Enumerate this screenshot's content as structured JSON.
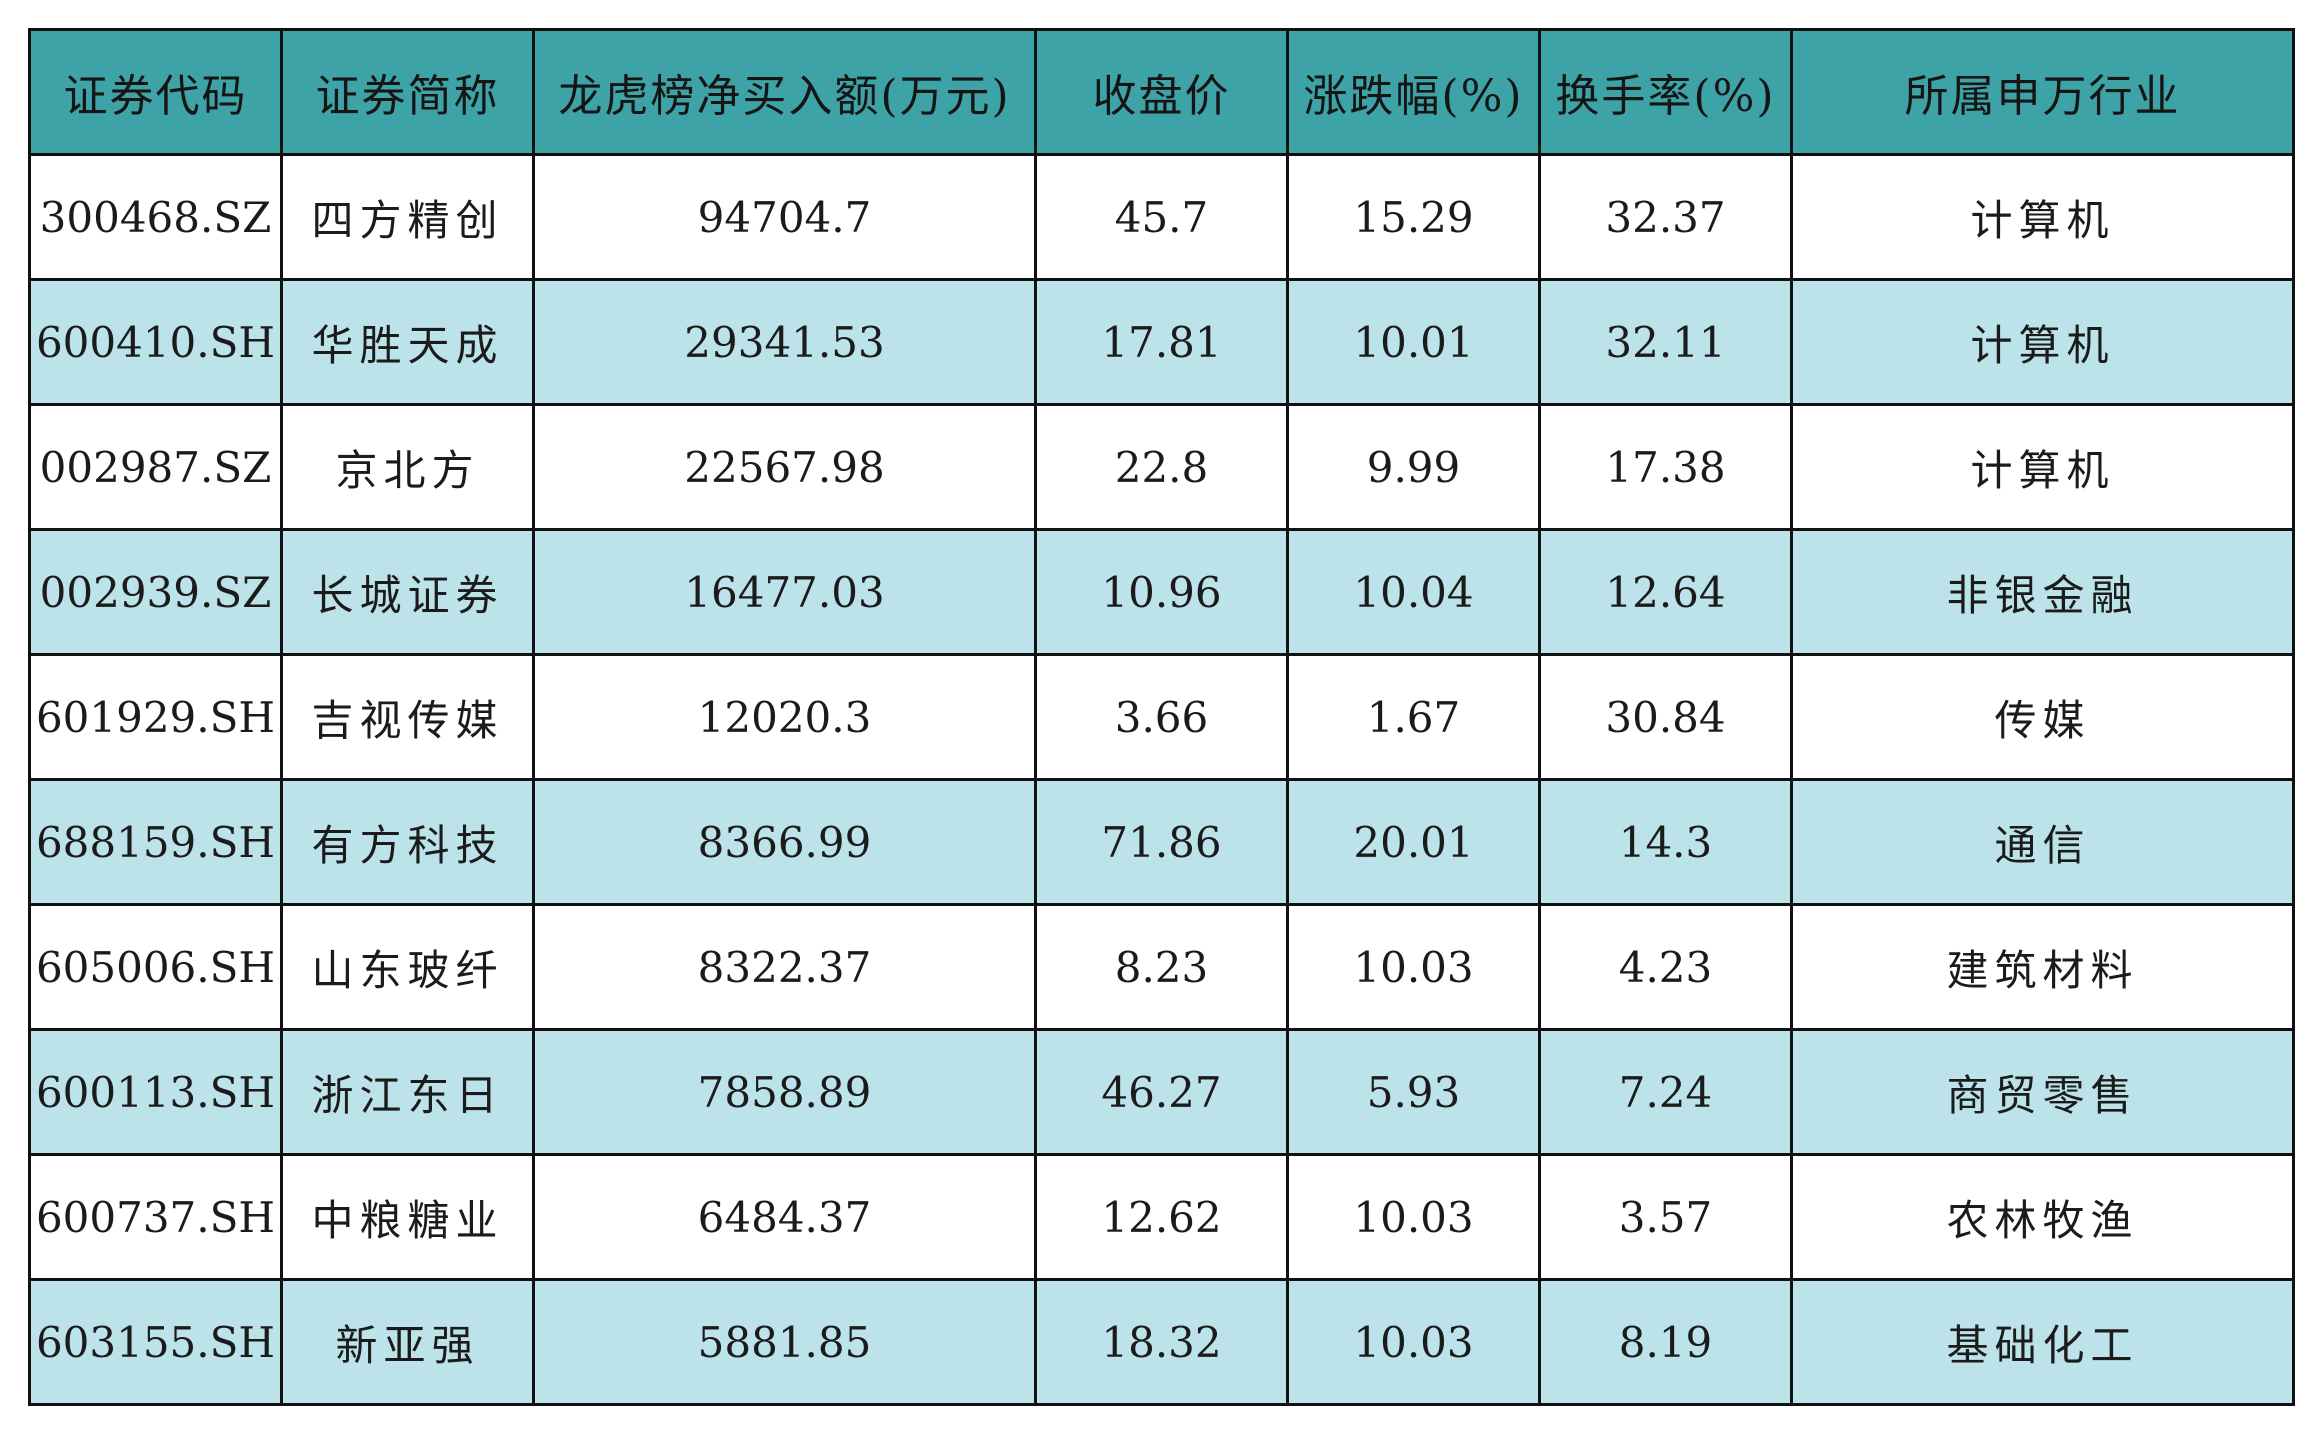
{
  "colors": {
    "header_bg": "#3ea3a7",
    "row_alt_bg": "#bde3ea",
    "row_bg": "#ffffff",
    "border": "#111111"
  },
  "chart_data": {
    "type": "table",
    "columns": [
      "证券代码",
      "证券简称",
      "龙虎榜净买入额(万元)",
      "收盘价",
      "涨跌幅(%)",
      "换手率(%)",
      "所属申万行业"
    ],
    "rows": [
      [
        "300468.SZ",
        "四方精创",
        "94704.7",
        "45.7",
        "15.29",
        "32.37",
        "计算机"
      ],
      [
        "600410.SH",
        "华胜天成",
        "29341.53",
        "17.81",
        "10.01",
        "32.11",
        "计算机"
      ],
      [
        "002987.SZ",
        "京北方",
        "22567.98",
        "22.8",
        "9.99",
        "17.38",
        "计算机"
      ],
      [
        "002939.SZ",
        "长城证券",
        "16477.03",
        "10.96",
        "10.04",
        "12.64",
        "非银金融"
      ],
      [
        "601929.SH",
        "吉视传媒",
        "12020.3",
        "3.66",
        "1.67",
        "30.84",
        "传媒"
      ],
      [
        "688159.SH",
        "有方科技",
        "8366.99",
        "71.86",
        "20.01",
        "14.3",
        "通信"
      ],
      [
        "605006.SH",
        "山东玻纤",
        "8322.37",
        "8.23",
        "10.03",
        "4.23",
        "建筑材料"
      ],
      [
        "600113.SH",
        "浙江东日",
        "7858.89",
        "46.27",
        "5.93",
        "7.24",
        "商贸零售"
      ],
      [
        "600737.SH",
        "中粮糖业",
        "6484.37",
        "12.62",
        "10.03",
        "3.57",
        "农林牧渔"
      ],
      [
        "603155.SH",
        "新亚强",
        "5881.85",
        "18.32",
        "10.03",
        "8.19",
        "基础化工"
      ]
    ]
  }
}
